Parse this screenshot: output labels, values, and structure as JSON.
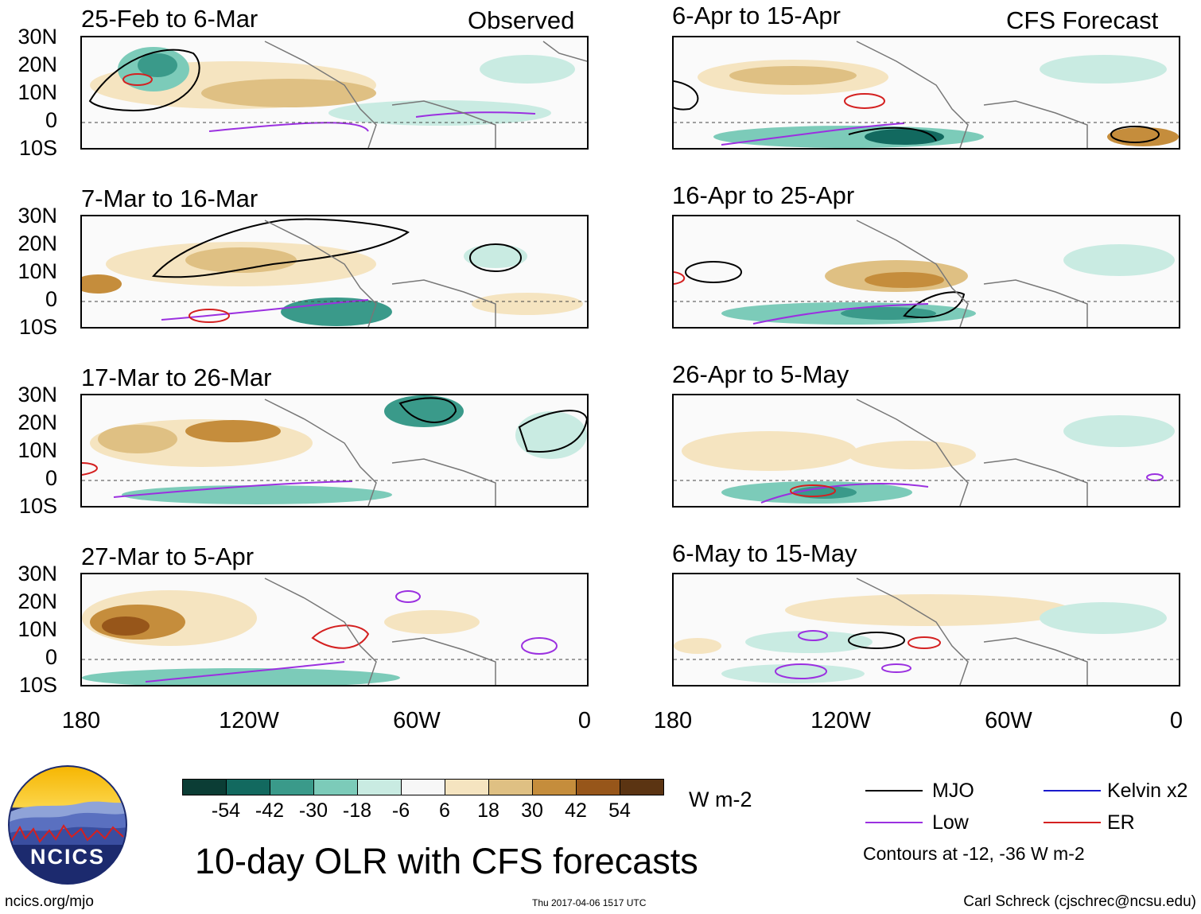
{
  "observed_label": "Observed",
  "forecast_label": "CFS Forecast",
  "panels_left": [
    {
      "title": "25-Feb to 6-Mar"
    },
    {
      "title": "7-Mar to 16-Mar"
    },
    {
      "title": "17-Mar to 26-Mar"
    },
    {
      "title": "27-Mar to 5-Apr"
    }
  ],
  "panels_right": [
    {
      "title": "6-Apr to 15-Apr"
    },
    {
      "title": "16-Apr to 25-Apr"
    },
    {
      "title": "26-Apr to 5-May"
    },
    {
      "title": "6-May to 15-May"
    }
  ],
  "lat_labels": [
    "30N",
    "20N",
    "10N",
    "0",
    "10S"
  ],
  "lon_labels": [
    "180",
    "120W",
    "60W",
    "0"
  ],
  "colorbar": {
    "colors": [
      "#0b3d35",
      "#12695f",
      "#3a9a8a",
      "#7ccbb9",
      "#c9ebe2",
      "#f7f7f7",
      "#f5e4c0",
      "#dfc083",
      "#c58d3c",
      "#97561a",
      "#5b3412"
    ],
    "ticks": [
      "-54",
      "-42",
      "-30",
      "-18",
      "-6",
      "6",
      "18",
      "30",
      "42",
      "54"
    ],
    "units": "W m-2"
  },
  "main_title": "10-day OLR with CFS forecasts",
  "legend": {
    "items": [
      {
        "label": "MJO",
        "color": "#000000"
      },
      {
        "label": "Kelvin x2",
        "color": "#1a1acc"
      },
      {
        "label": "Low",
        "color": "#9b30e0"
      },
      {
        "label": "ER",
        "color": "#d42020"
      }
    ],
    "contour_note": "Contours at -12, -36 W m-2"
  },
  "logo_text": "NCICS",
  "footer": {
    "url": "ncics.org/mjo",
    "timestamp": "Thu 2017-04-06 1517 UTC",
    "author": "Carl Schreck (cjschrec@ncsu.edu)"
  }
}
